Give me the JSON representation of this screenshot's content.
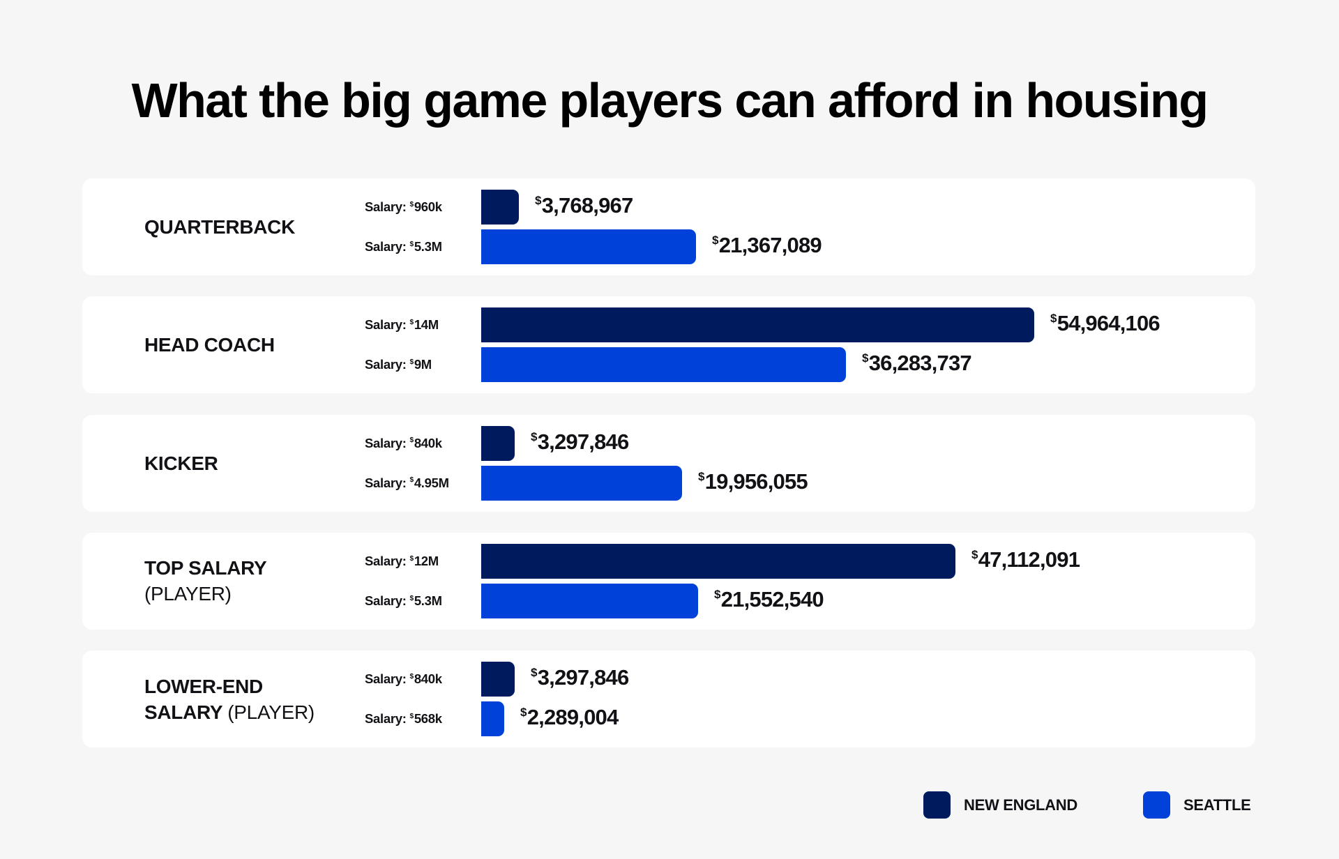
{
  "title": "What the big game players can afford in housing",
  "colors": {
    "new_england": "#001a5e",
    "seattle": "#0042d9",
    "background": "#f6f6f6",
    "card": "#ffffff",
    "text": "#111116"
  },
  "salary_prefix": "Salary: ",
  "currency_symbol": "$",
  "legend": [
    {
      "label": "NEW ENGLAND",
      "color": "#001a5e"
    },
    {
      "label": "SEATTLE",
      "color": "#0042d9"
    }
  ],
  "rows": [
    {
      "label_bold": "QUARTERBACK",
      "label_light": "",
      "new_england": {
        "salary": "960k",
        "value": "3,768,967"
      },
      "seattle": {
        "salary": "5.3M",
        "value": "21,367,089"
      }
    },
    {
      "label_bold": "HEAD COACH",
      "label_light": "",
      "new_england": {
        "salary": "14M",
        "value": "54,964,106"
      },
      "seattle": {
        "salary": "9M",
        "value": "36,283,737"
      }
    },
    {
      "label_bold": "KICKER",
      "label_light": "",
      "new_england": {
        "salary": "840k",
        "value": "3,297,846"
      },
      "seattle": {
        "salary": "4.95M",
        "value": "19,956,055"
      }
    },
    {
      "label_bold": "TOP SALARY",
      "label_light": "(PLAYER)",
      "new_england": {
        "salary": "12M",
        "value": "47,112,091"
      },
      "seattle": {
        "salary": "5.3M",
        "value": "21,552,540"
      }
    },
    {
      "label_bold": "LOWER-END SALARY",
      "label_light": "(PLAYER)",
      "new_england": {
        "salary": "840k",
        "value": "3,297,846"
      },
      "seattle": {
        "salary": "568k",
        "value": "2,289,004"
      }
    }
  ],
  "chart_data": {
    "type": "bar",
    "orientation": "horizontal",
    "title": "What the big game players can afford in housing",
    "categories": [
      "QUARTERBACK",
      "HEAD COACH",
      "KICKER",
      "TOP SALARY (PLAYER)",
      "LOWER-END SALARY (PLAYER)"
    ],
    "series": [
      {
        "name": "NEW ENGLAND",
        "color": "#001a5e",
        "values": [
          3768967,
          54964106,
          3297846,
          47112091,
          3297846
        ],
        "salaries": [
          "$960k",
          "$14M",
          "$840k",
          "$12M",
          "$840k"
        ]
      },
      {
        "name": "SEATTLE",
        "color": "#0042d9",
        "values": [
          21367089,
          36283737,
          19956055,
          21552540,
          2289004
        ],
        "salaries": [
          "$5.3M",
          "$9M",
          "$4.95M",
          "$5.3M",
          "$568k"
        ]
      }
    ],
    "xlabel": "",
    "ylabel": "",
    "grid": false,
    "legend_position": "bottom-right",
    "data_labels": true
  }
}
